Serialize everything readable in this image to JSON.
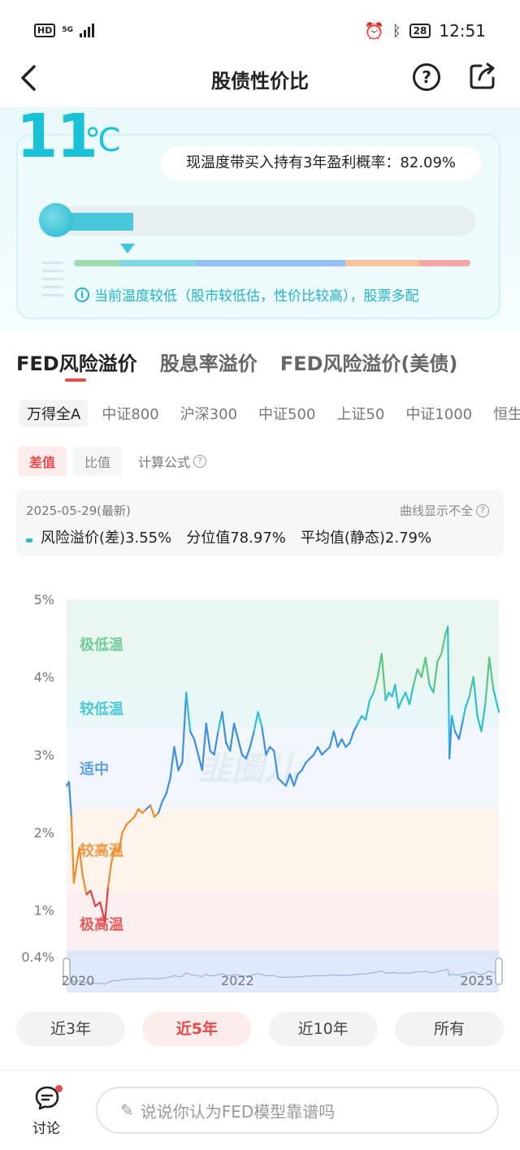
{
  "status_bar": {
    "network": "5G",
    "hd": "HD",
    "battery": "28",
    "time": "12:51"
  },
  "header": {
    "title": "股债性价比"
  },
  "thermometer": {
    "temperature": "11",
    "unit": "℃",
    "probability_text": "现温度带买入持有3年盈利概率：82.09%",
    "fill_fraction": 0.11,
    "tip": "当前温度较低（股市较低估，性价比较高），股票多配",
    "scale_colors": [
      "#9cdcb0",
      "#7fd8e3",
      "#93bff3",
      "#f5c49a",
      "#f4a7a7"
    ]
  },
  "tabs": [
    "FED风险溢价",
    "股息率溢价",
    "FED风险溢价(美债)"
  ],
  "active_tab": 0,
  "indices": [
    "万得全A",
    "中证800",
    "沪深300",
    "中证500",
    "上证50",
    "中证1000",
    "恒生指"
  ],
  "active_index": 0,
  "modes": [
    "差值",
    "比值"
  ],
  "active_mode": 0,
  "formula_label": "计算公式",
  "info": {
    "date": "2025-05-29(最新)",
    "incomplete_label": "曲线显示不全",
    "series_label": "风险溢价(差)",
    "series_value": "3.55%",
    "percentile_label": "分位值",
    "percentile_value": "78.97%",
    "average_label": "平均值(静态)",
    "average_value": "2.79%"
  },
  "chart_data": {
    "type": "line",
    "ylim": [
      0.4,
      5
    ],
    "y_ticks": [
      "5%",
      "4%",
      "3%",
      "2%",
      "1%",
      "0.4%"
    ],
    "y_tick_values": [
      5,
      4,
      3,
      2,
      1,
      0.4
    ],
    "x_range": [
      2020,
      2025.42
    ],
    "x_ticks": [
      "2020",
      "2022",
      "2025"
    ],
    "x_tick_values": [
      2020,
      2022,
      2025
    ],
    "zones": [
      {
        "label": "极低温",
        "color": "#5cc48a",
        "range": [
          3.85,
          5
        ]
      },
      {
        "label": "较低温",
        "color": "#2ec0d0",
        "range": [
          3.35,
          3.85
        ]
      },
      {
        "label": "适中",
        "color": "#3e8fe0",
        "range": [
          2.3,
          3.35
        ]
      },
      {
        "label": "较高温",
        "color": "#ef8b2c",
        "range": [
          1.25,
          2.3
        ]
      },
      {
        "label": "极高温",
        "color": "#e24040",
        "range": [
          0.4,
          1.25
        ]
      }
    ],
    "x": [
      2020.0,
      2020.03,
      2020.06,
      2020.09,
      2020.12,
      2020.16,
      2020.2,
      2020.25,
      2020.3,
      2020.36,
      2020.42,
      2020.48,
      2020.52,
      2020.56,
      2020.6,
      2020.65,
      2020.7,
      2020.75,
      2020.8,
      2020.85,
      2020.9,
      2020.95,
      2021.0,
      2021.05,
      2021.1,
      2021.15,
      2021.2,
      2021.25,
      2021.3,
      2021.35,
      2021.4,
      2021.45,
      2021.5,
      2021.55,
      2021.6,
      2021.65,
      2021.7,
      2021.75,
      2021.8,
      2021.85,
      2021.9,
      2021.95,
      2022.0,
      2022.05,
      2022.1,
      2022.15,
      2022.2,
      2022.25,
      2022.3,
      2022.35,
      2022.4,
      2022.45,
      2022.5,
      2022.55,
      2022.6,
      2022.65,
      2022.7,
      2022.75,
      2022.8,
      2022.85,
      2022.9,
      2022.95,
      2023.0,
      2023.05,
      2023.1,
      2023.15,
      2023.2,
      2023.25,
      2023.3,
      2023.35,
      2023.4,
      2023.45,
      2023.5,
      2023.55,
      2023.6,
      2023.65,
      2023.7,
      2023.75,
      2023.8,
      2023.85,
      2023.9,
      2023.95,
      2024.0,
      2024.04,
      2024.08,
      2024.12,
      2024.16,
      2024.2,
      2024.25,
      2024.3,
      2024.35,
      2024.4,
      2024.45,
      2024.5,
      2024.55,
      2024.6,
      2024.65,
      2024.7,
      2024.75,
      2024.78,
      2024.8,
      2024.83,
      2024.87,
      2024.92,
      2024.97,
      2025.0,
      2025.05,
      2025.1,
      2025.15,
      2025.2,
      2025.25,
      2025.3,
      2025.35,
      2025.42
    ],
    "y": [
      2.6,
      2.65,
      2.2,
      1.35,
      1.55,
      1.8,
      1.45,
      1.2,
      1.25,
      1.05,
      1.1,
      0.85,
      1.3,
      1.6,
      1.8,
      1.75,
      2.0,
      2.1,
      2.15,
      2.2,
      2.3,
      2.25,
      2.3,
      2.35,
      2.2,
      2.25,
      2.4,
      2.5,
      2.7,
      3.1,
      2.8,
      2.9,
      3.8,
      3.3,
      3.2,
      3.0,
      2.8,
      3.4,
      3.05,
      3.0,
      3.3,
      3.55,
      3.15,
      3.05,
      3.4,
      3.2,
      3.0,
      2.95,
      3.1,
      3.3,
      3.55,
      3.35,
      3.0,
      3.1,
      3.05,
      2.7,
      2.65,
      2.6,
      2.75,
      2.6,
      2.75,
      2.8,
      2.9,
      2.95,
      3.0,
      3.1,
      3.0,
      3.05,
      3.1,
      3.3,
      3.1,
      3.2,
      3.1,
      3.15,
      3.3,
      3.4,
      3.5,
      3.45,
      3.7,
      3.8,
      4.0,
      4.3,
      3.7,
      3.8,
      3.75,
      3.9,
      3.6,
      3.7,
      3.8,
      3.65,
      3.9,
      4.1,
      4.0,
      4.25,
      3.9,
      3.8,
      4.2,
      4.3,
      4.55,
      4.65,
      2.95,
      3.5,
      3.3,
      3.2,
      3.45,
      3.6,
      3.75,
      4.0,
      3.5,
      3.3,
      3.65,
      4.25,
      3.85,
      3.55
    ],
    "range_selector": {
      "start": 2020,
      "end": 2025.42
    }
  },
  "watermark": "韭圈儿",
  "time_ranges": [
    "近3年",
    "近5年",
    "近10年",
    "所有"
  ],
  "active_range": 1,
  "bottom": {
    "discuss_label": "讨论",
    "comment_placeholder": "说说你认为FED模型靠谱吗"
  }
}
